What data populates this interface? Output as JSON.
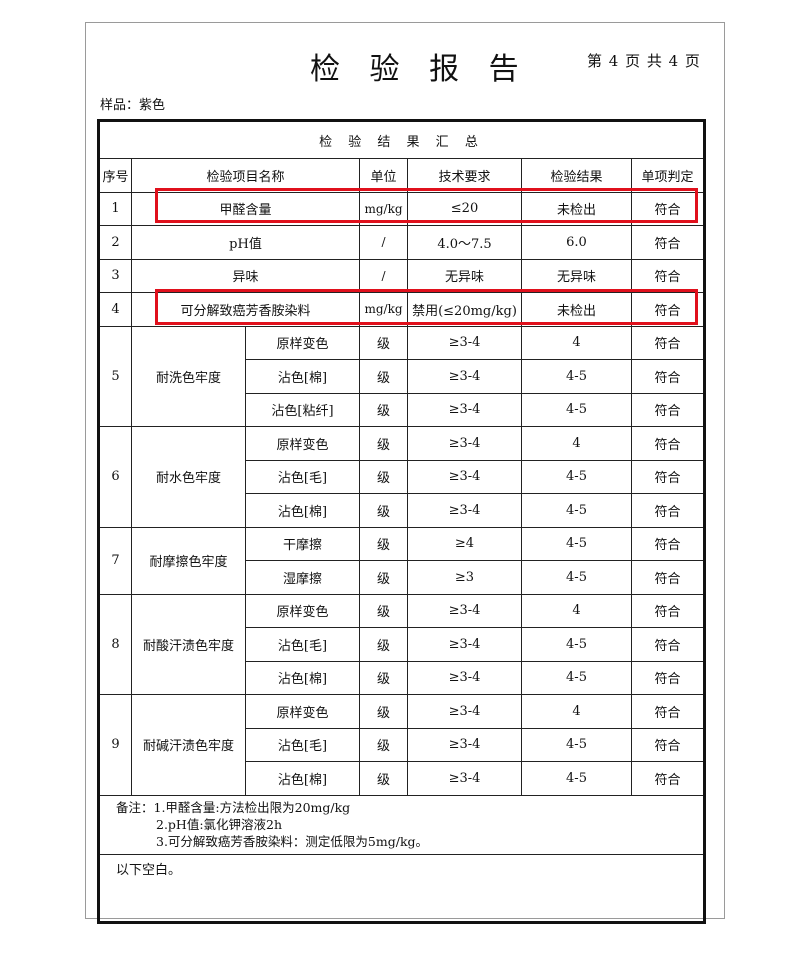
{
  "header": {
    "title": "检 验 报 告",
    "page_no": "第 4 页 共 4 页",
    "sample": "样品：紫色"
  },
  "table": {
    "caption": "检 验 结 果 汇 总",
    "columns": [
      "序号",
      "检验项目名称",
      "单位",
      "技术要求",
      "检验结果",
      "单项判定"
    ],
    "simple_rows": [
      {
        "no": "1",
        "name": "甲醛含量",
        "unit": "mg/kg",
        "req": "≤20",
        "result": "未检出",
        "verdict": "符合",
        "highlighted": true
      },
      {
        "no": "2",
        "name": "pH值",
        "unit": "/",
        "req": "4.0～7.5",
        "result": "6.0",
        "verdict": "符合",
        "highlighted": false
      },
      {
        "no": "3",
        "name": "异味",
        "unit": "/",
        "req": "无异味",
        "result": "无异味",
        "verdict": "符合",
        "highlighted": false
      },
      {
        "no": "4",
        "name": "可分解致癌芳香胺染料",
        "unit": "mg/kg",
        "req": "禁用(≤20mg/kg)",
        "result": "未检出",
        "verdict": "符合",
        "highlighted": true
      }
    ],
    "group_rows": [
      {
        "no": "5",
        "name": "耐洗色牢度",
        "subs": [
          {
            "sub": "原样变色",
            "unit": "级",
            "req": "≥3-4",
            "result": "4",
            "verdict": "符合"
          },
          {
            "sub": "沾色[棉]",
            "unit": "级",
            "req": "≥3-4",
            "result": "4-5",
            "verdict": "符合"
          },
          {
            "sub": "沾色[粘纤]",
            "unit": "级",
            "req": "≥3-4",
            "result": "4-5",
            "verdict": "符合"
          }
        ]
      },
      {
        "no": "6",
        "name": "耐水色牢度",
        "subs": [
          {
            "sub": "原样变色",
            "unit": "级",
            "req": "≥3-4",
            "result": "4",
            "verdict": "符合"
          },
          {
            "sub": "沾色[毛]",
            "unit": "级",
            "req": "≥3-4",
            "result": "4-5",
            "verdict": "符合"
          },
          {
            "sub": "沾色[棉]",
            "unit": "级",
            "req": "≥3-4",
            "result": "4-5",
            "verdict": "符合"
          }
        ]
      },
      {
        "no": "7",
        "name": "耐摩擦色牢度",
        "subs": [
          {
            "sub": "干摩擦",
            "unit": "级",
            "req": "≥4",
            "result": "4-5",
            "verdict": "符合"
          },
          {
            "sub": "湿摩擦",
            "unit": "级",
            "req": "≥3",
            "result": "4-5",
            "verdict": "符合"
          }
        ]
      },
      {
        "no": "8",
        "name": "耐酸汗渍色牢度",
        "subs": [
          {
            "sub": "原样变色",
            "unit": "级",
            "req": "≥3-4",
            "result": "4",
            "verdict": "符合"
          },
          {
            "sub": "沾色[毛]",
            "unit": "级",
            "req": "≥3-4",
            "result": "4-5",
            "verdict": "符合"
          },
          {
            "sub": "沾色[棉]",
            "unit": "级",
            "req": "≥3-4",
            "result": "4-5",
            "verdict": "符合"
          }
        ]
      },
      {
        "no": "9",
        "name": "耐碱汗渍色牢度",
        "subs": [
          {
            "sub": "原样变色",
            "unit": "级",
            "req": "≥3-4",
            "result": "4",
            "verdict": "符合"
          },
          {
            "sub": "沾色[毛]",
            "unit": "级",
            "req": "≥3-4",
            "result": "4-5",
            "verdict": "符合"
          },
          {
            "sub": "沾色[棉]",
            "unit": "级",
            "req": "≥3-4",
            "result": "4-5",
            "verdict": "符合"
          }
        ]
      }
    ]
  },
  "notes": [
    "备注：1.甲醛含量:方法检出限为20mg/kg",
    "2.pH值:氯化钾溶液2h",
    "3.可分解致癌芳香胺染料：测定低限为5mg/kg。"
  ],
  "blank_note": "以下空白。",
  "highlight_color": "#e0101c"
}
